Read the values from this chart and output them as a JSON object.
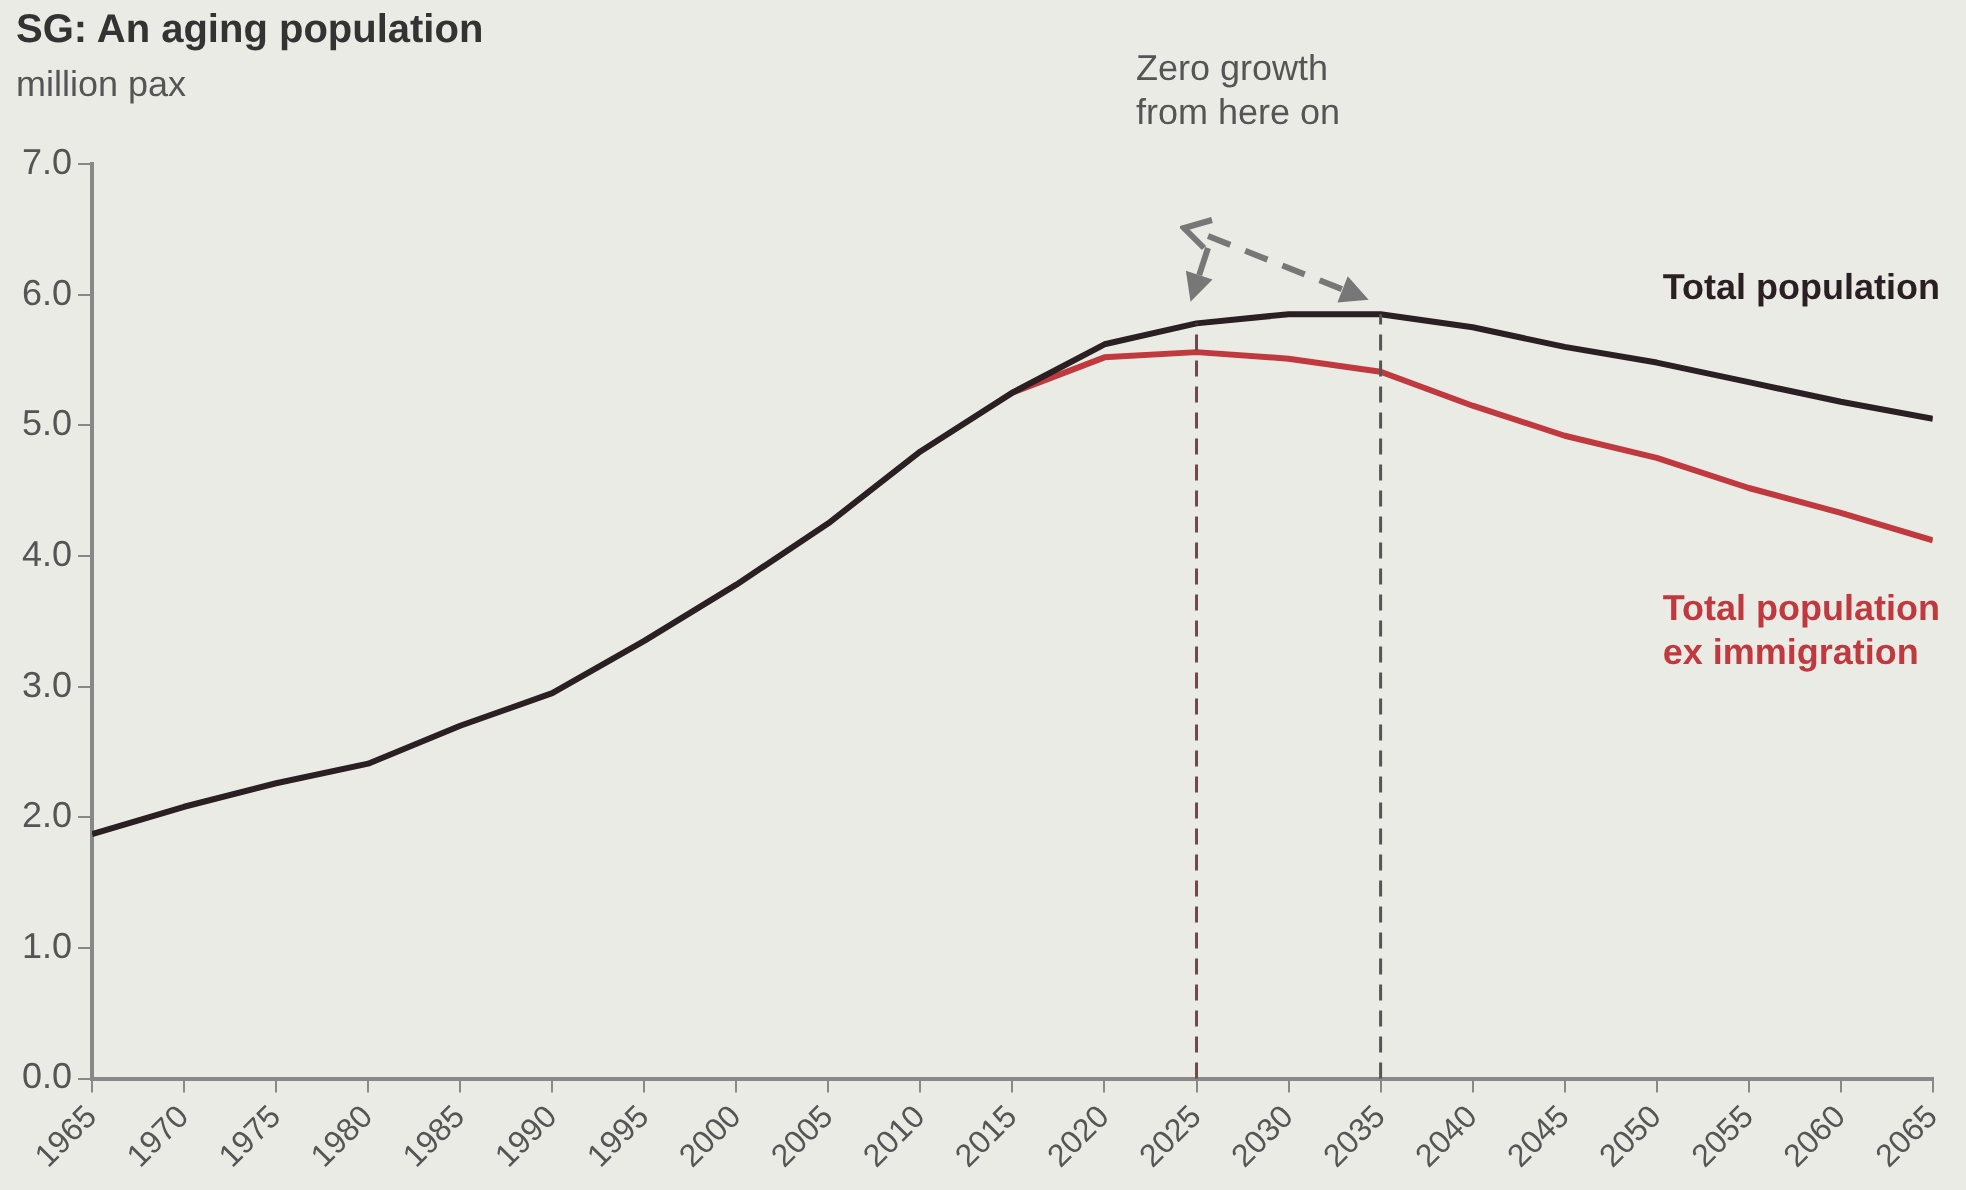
{
  "chart_data": {
    "type": "line",
    "title": "SG: An aging population",
    "ylabel": "million pax",
    "annotations": [
      "Zero growth\nfrom here on"
    ],
    "xlim": [
      1965,
      2065
    ],
    "xticks": [
      1965,
      1970,
      1975,
      1980,
      1985,
      1990,
      1995,
      2000,
      2005,
      2010,
      2015,
      2020,
      2025,
      2030,
      2035,
      2040,
      2045,
      2050,
      2055,
      2060,
      2065
    ],
    "ylim": [
      0,
      7
    ],
    "yticks": [
      {
        "value": 0,
        "label": "0.0"
      },
      {
        "value": 1,
        "label": "1.0"
      },
      {
        "value": 2,
        "label": "2.0"
      },
      {
        "value": 3,
        "label": "3.0"
      },
      {
        "value": 4,
        "label": "4.0"
      },
      {
        "value": 5,
        "label": "5.0"
      },
      {
        "value": 6,
        "label": "6.0"
      },
      {
        "value": 7,
        "label": "7.0"
      }
    ],
    "series": [
      {
        "name": "Total population",
        "color": "#2a1f22",
        "x": [
          1965,
          1970,
          1975,
          1980,
          1985,
          1990,
          1995,
          2000,
          2005,
          2010,
          2015,
          2020,
          2025,
          2030,
          2035,
          2040,
          2045,
          2050,
          2055,
          2060,
          2065
        ],
        "values": [
          1.87,
          2.08,
          2.26,
          2.41,
          2.7,
          2.95,
          3.35,
          3.78,
          4.25,
          4.8,
          5.25,
          5.62,
          5.78,
          5.85,
          5.85,
          5.75,
          5.6,
          5.48,
          5.33,
          5.18,
          5.05
        ]
      },
      {
        "name": "Total population ex immigration",
        "color": "#c0393f",
        "x": [
          2015,
          2020,
          2025,
          2030,
          2035,
          2040,
          2045,
          2050,
          2055,
          2060,
          2065
        ],
        "values": [
          5.25,
          5.52,
          5.56,
          5.51,
          5.41,
          5.15,
          4.92,
          4.75,
          4.52,
          4.33,
          4.12
        ]
      }
    ],
    "ref_lines": [
      {
        "axis": "x",
        "value": 2025,
        "color": "#6e4a4c",
        "line_style": "dashed"
      },
      {
        "axis": "x",
        "value": 2035,
        "color": "#555555",
        "line_style": "dashed"
      }
    ],
    "grid": false,
    "legend": false,
    "marker": "none",
    "line_style": "solid"
  }
}
